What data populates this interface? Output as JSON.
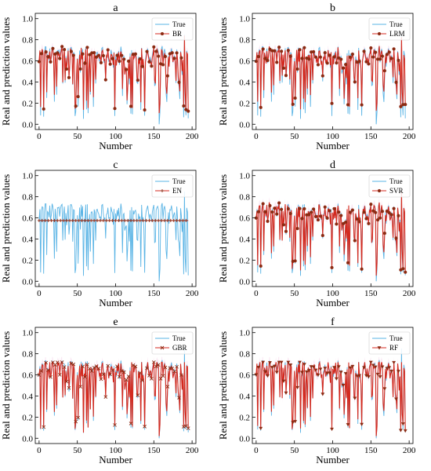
{
  "colors": {
    "true_line": "#5ab4e5",
    "pred_line": "#d42a1f",
    "marker": "#8b2a12",
    "ribbon": "#f2bde0"
  },
  "chart_data": [
    {
      "type": "line",
      "title": "a",
      "xlabel": "Number",
      "ylabel": "Real and prediction values",
      "xlim": [
        -5,
        205
      ],
      "ylim": [
        -0.05,
        1.05
      ],
      "xticks": [
        0,
        50,
        100,
        150,
        200
      ],
      "yticks": [
        0.0,
        0.2,
        0.4,
        0.6,
        0.8,
        1.0
      ],
      "legend_position": "top-right",
      "grid": false,
      "series": [
        {
          "name": "True"
        },
        {
          "name": "BR",
          "marker": "circle"
        }
      ]
    },
    {
      "type": "line",
      "title": "b",
      "xlabel": "Number",
      "ylabel": "Real and prediction values",
      "xlim": [
        -5,
        205
      ],
      "ylim": [
        -0.05,
        1.05
      ],
      "xticks": [
        0,
        50,
        100,
        150,
        200
      ],
      "yticks": [
        0.0,
        0.2,
        0.4,
        0.6,
        0.8,
        1.0
      ],
      "legend_position": "top-right",
      "grid": false,
      "series": [
        {
          "name": "True"
        },
        {
          "name": "LRM",
          "marker": "circle"
        }
      ]
    },
    {
      "type": "line",
      "title": "c",
      "xlabel": "Number",
      "ylabel": "Real and prediction values",
      "xlim": [
        -5,
        205
      ],
      "ylim": [
        -0.05,
        1.05
      ],
      "xticks": [
        0,
        50,
        100,
        150,
        200
      ],
      "yticks": [
        0.0,
        0.2,
        0.4,
        0.6,
        0.8,
        1.0
      ],
      "legend_position": "top-right",
      "grid": false,
      "series": [
        {
          "name": "True"
        },
        {
          "name": "EN",
          "marker": "plus"
        }
      ]
    },
    {
      "type": "line",
      "title": "d",
      "xlabel": "Number",
      "ylabel": "Real and prediction values",
      "xlim": [
        -5,
        205
      ],
      "ylim": [
        -0.05,
        1.05
      ],
      "xticks": [
        0,
        50,
        100,
        150,
        200
      ],
      "yticks": [
        0.0,
        0.2,
        0.4,
        0.6,
        0.8,
        1.0
      ],
      "legend_position": "top-right",
      "grid": false,
      "series": [
        {
          "name": "True"
        },
        {
          "name": "SVR",
          "marker": "circle"
        }
      ]
    },
    {
      "type": "line",
      "title": "e",
      "xlabel": "Number",
      "ylabel": "Real and prediction values",
      "xlim": [
        -5,
        205
      ],
      "ylim": [
        -0.05,
        1.05
      ],
      "xticks": [
        0,
        50,
        100,
        150,
        200
      ],
      "yticks": [
        0.0,
        0.2,
        0.4,
        0.6,
        0.8,
        1.0
      ],
      "legend_position": "top-right",
      "grid": false,
      "series": [
        {
          "name": "True"
        },
        {
          "name": "GBR",
          "marker": "x"
        }
      ]
    },
    {
      "type": "line",
      "title": "f",
      "xlabel": "Number",
      "ylabel": "Real and prediction values",
      "xlim": [
        -5,
        205
      ],
      "ylim": [
        -0.05,
        1.05
      ],
      "xticks": [
        0,
        50,
        100,
        150,
        200
      ],
      "yticks": [
        0.0,
        0.2,
        0.4,
        0.6,
        0.8,
        1.0
      ],
      "legend_position": "top-right",
      "grid": false,
      "series": [
        {
          "name": "True"
        },
        {
          "name": "RF",
          "marker": "triangle-down"
        }
      ]
    }
  ]
}
